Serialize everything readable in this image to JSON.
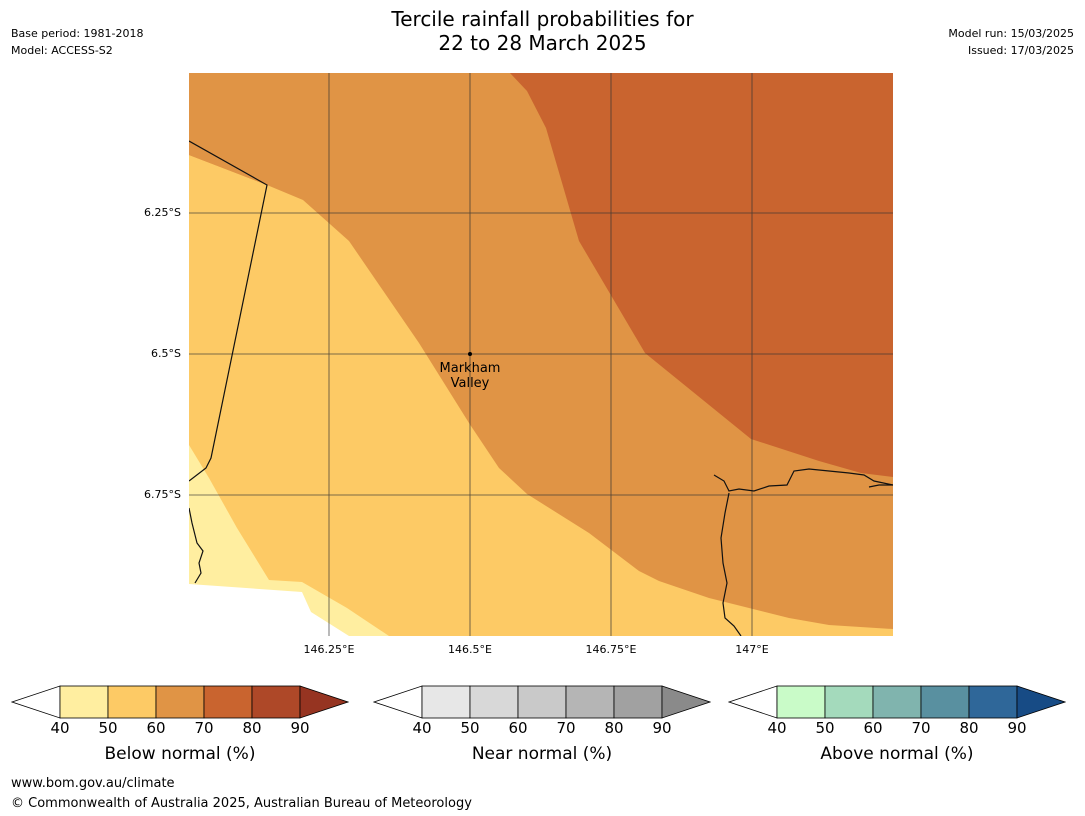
{
  "header": {
    "title_line1": "Tercile rainfall probabilities for",
    "title_line2": "22 to 28 March 2025",
    "base_period": "Base period: 1981-2018",
    "model": "Model: ACCESS-S2",
    "model_run": "Model run: 15/03/2025",
    "issued": "Issued: 17/03/2025"
  },
  "map": {
    "lat_labels": [
      "6.25°S",
      "6.5°S",
      "6.75°S"
    ],
    "lon_labels": [
      "146.25°E",
      "146.5°E",
      "146.75°E",
      "147°E"
    ],
    "location": {
      "name_line1": "Markham",
      "name_line2": "Valley"
    }
  },
  "colorbars": [
    {
      "title": "Below normal (%)",
      "ticks": [
        "40",
        "50",
        "60",
        "70",
        "80",
        "90"
      ],
      "colors": [
        "#ffffff",
        "#ffeea0",
        "#fdca65",
        "#e09445",
        "#c9642f",
        "#ae4828",
        "#963421"
      ]
    },
    {
      "title": "Near normal (%)",
      "ticks": [
        "40",
        "50",
        "60",
        "70",
        "80",
        "90"
      ],
      "colors": [
        "#ffffff",
        "#e7e7e7",
        "#d8d8d8",
        "#c9c9c9",
        "#b5b5b5",
        "#a1a1a1",
        "#8a8a8a"
      ]
    },
    {
      "title": "Above normal (%)",
      "ticks": [
        "40",
        "50",
        "60",
        "70",
        "80",
        "90"
      ],
      "colors": [
        "#ffffff",
        "#c9fbc8",
        "#a4dabc",
        "#80b4ae",
        "#5990a0",
        "#2f6799",
        "#174b85"
      ]
    }
  ],
  "footer": {
    "url": "www.bom.gov.au/climate",
    "copyright": "© Commonwealth of Australia 2025, Australian Bureau of Meteorology"
  }
}
